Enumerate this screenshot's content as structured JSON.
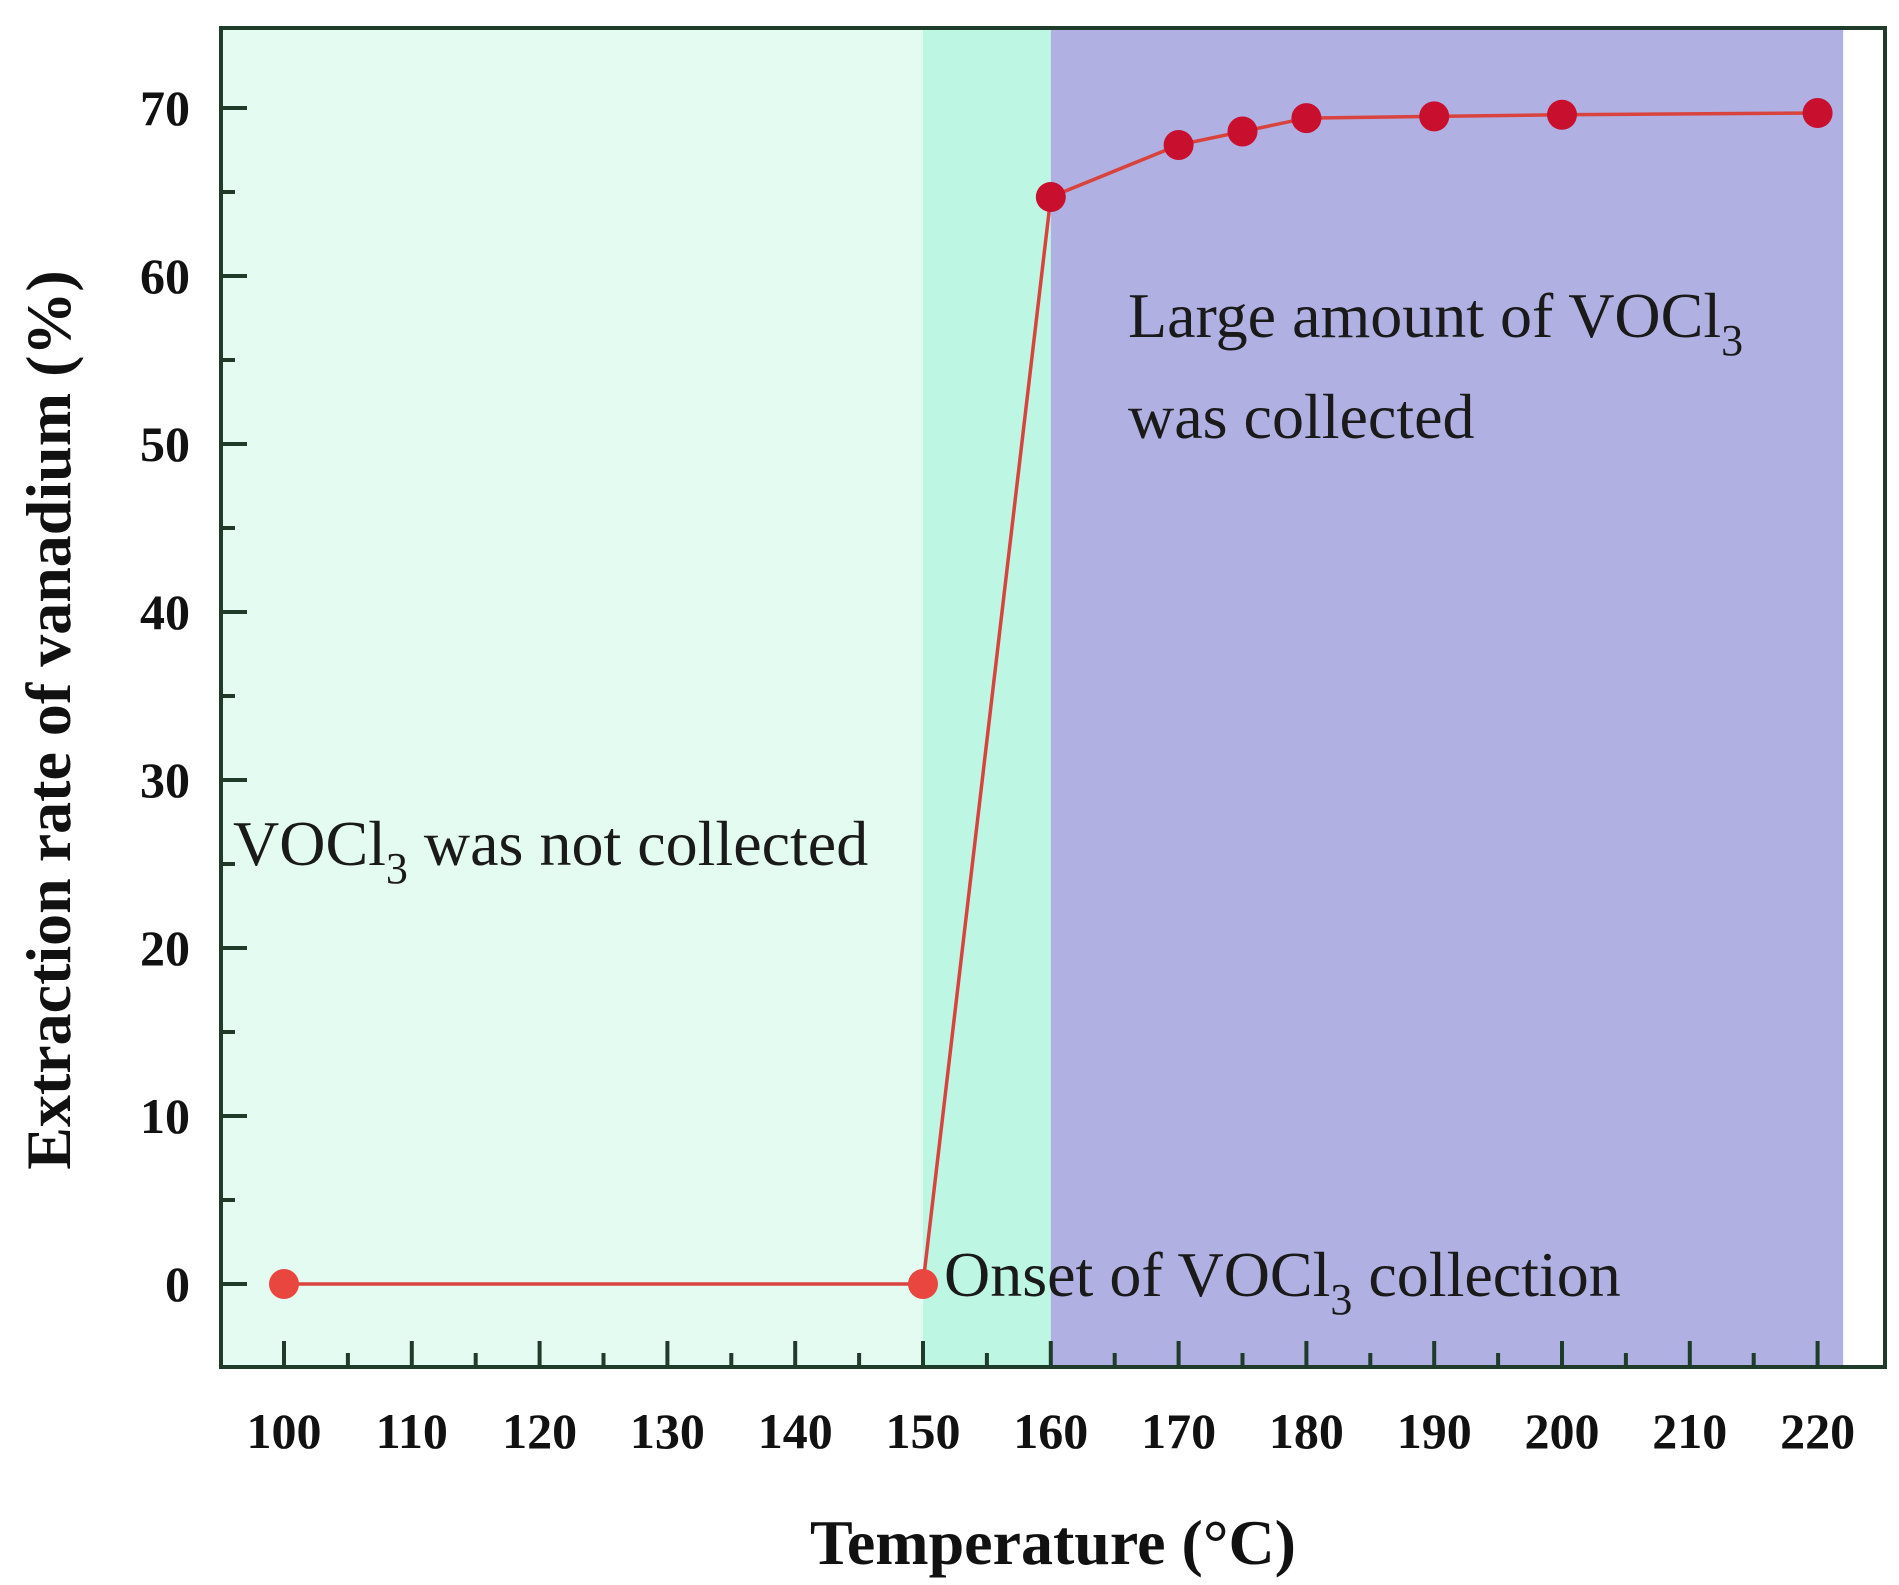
{
  "chart_data": {
    "type": "line",
    "xlabel": "Temperature (°C)",
    "ylabel": "Extraction rate of vanadium (%)",
    "xlim": [
      95,
      222
    ],
    "ylim": [
      -5,
      75
    ],
    "x_ticks": [
      100,
      110,
      120,
      130,
      140,
      150,
      160,
      170,
      180,
      190,
      200,
      210,
      220
    ],
    "y_ticks": [
      0,
      10,
      20,
      30,
      40,
      50,
      60,
      70
    ],
    "series": [
      {
        "name": "Extraction rate",
        "x": [
          100,
          150,
          160,
          170,
          175,
          180,
          190,
          200,
          220
        ],
        "y": [
          0,
          0,
          64.7,
          67.8,
          68.6,
          69.4,
          69.5,
          69.6,
          69.7
        ],
        "point_colors": [
          "#e8463f",
          "#e8463f",
          "#c8102e",
          "#c8102e",
          "#c8102e",
          "#c8102e",
          "#c8102e",
          "#c8102e",
          "#c8102e"
        ],
        "line_color": "#d9433e"
      }
    ],
    "regions": [
      {
        "name": "not-collected",
        "x_range": [
          95,
          150
        ],
        "color": "#e4fbf2"
      },
      {
        "name": "onset",
        "x_range": [
          150,
          160
        ],
        "color": "#bdf7e4"
      },
      {
        "name": "large-amount",
        "x_range": [
          160,
          222
        ],
        "color": "#b0b0e2"
      }
    ],
    "annotations": {
      "not_collected": {
        "pre": "VOCl",
        "sub": "3",
        "post": " was not collected"
      },
      "onset": {
        "pre": "Onset of VOCl",
        "sub": "3",
        "post": " collection"
      },
      "large_line1": {
        "pre": "Large amount of VOCl",
        "sub": "3"
      },
      "large_line2": "was collected"
    },
    "grid": false
  }
}
